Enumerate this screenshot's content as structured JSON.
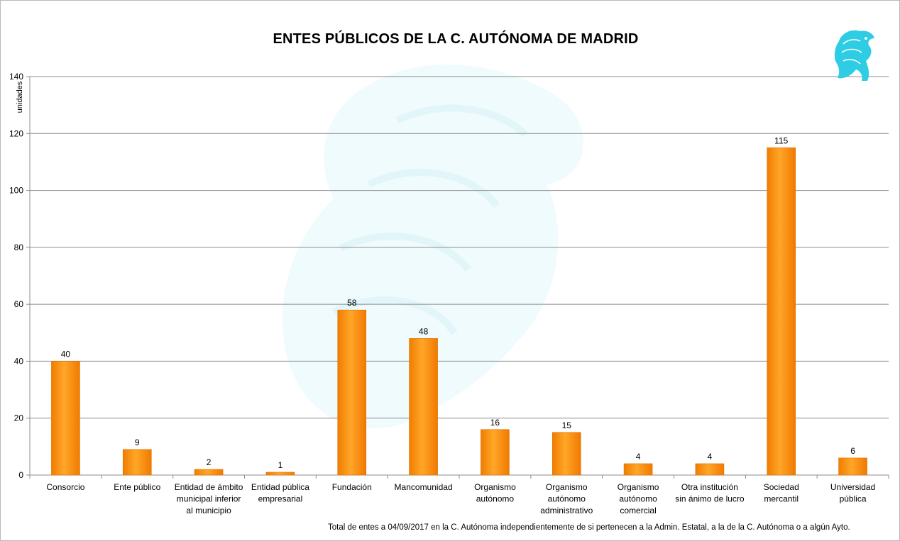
{
  "chart_data": {
    "type": "bar",
    "title": "ENTES PÚBLICOS DE LA C. AUTÓNOMA DE MADRID",
    "xlabel": "",
    "ylabel": "unidades",
    "ylim": [
      0,
      140
    ],
    "yticks": [
      0,
      20,
      40,
      60,
      80,
      100,
      120,
      140
    ],
    "grid": true,
    "legend": "none",
    "bar_color": "#ff9100",
    "categories": [
      [
        "Consorcio"
      ],
      [
        "Ente público"
      ],
      [
        "Entidad de ámbito",
        "municipal inferior",
        "al municipio"
      ],
      [
        "Entidad pública",
        "empresarial"
      ],
      [
        "Fundación"
      ],
      [
        "Mancomunidad"
      ],
      [
        "Organismo",
        "autónomo"
      ],
      [
        "Organismo",
        "autónomo",
        "administrativo"
      ],
      [
        "Organismo",
        "autónomo",
        "comercial"
      ],
      [
        "Otra institución",
        "sin ánimo de lucro"
      ],
      [
        "Sociedad",
        "mercantil"
      ],
      [
        "Universidad",
        "pública"
      ]
    ],
    "values": [
      40,
      9,
      2,
      1,
      58,
      48,
      16,
      15,
      4,
      4,
      115,
      6
    ],
    "footnote": "Total de entes  a 04/09/2017 en  la C. Autónoma  independientemente  de  si pertenecen  a la Admin. Estatal, a la de la C. Autónoma  o a algún Ayto."
  },
  "logo": {
    "name": "griffin-logo",
    "color": "#2fd0e6"
  },
  "watermark": {
    "name": "griffin-watermark",
    "color": "#e8f9fc"
  }
}
